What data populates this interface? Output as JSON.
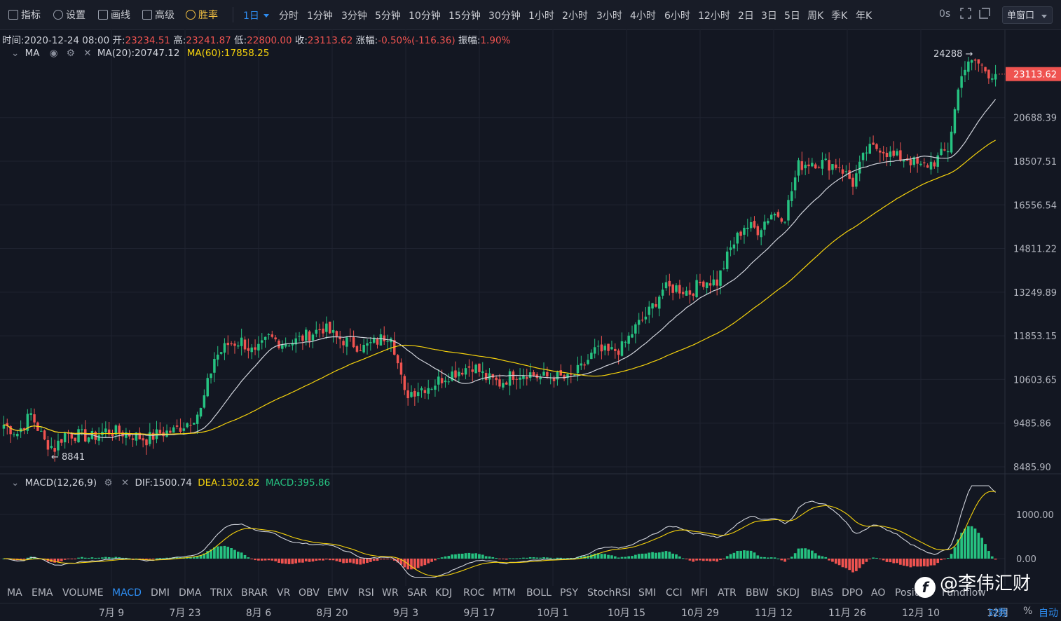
{
  "toolbar": {
    "items": [
      {
        "label": "指标",
        "icon": "indicator-icon"
      },
      {
        "label": "设置",
        "icon": "gear-icon"
      },
      {
        "label": "画线",
        "icon": "pencil-icon"
      },
      {
        "label": "高级",
        "icon": "advanced-icon"
      },
      {
        "label": "胜率",
        "icon": "winrate-icon"
      }
    ],
    "timeframes": [
      "1日",
      "分时",
      "1分钟",
      "3分钟",
      "5分钟",
      "10分钟",
      "15分钟",
      "30分钟",
      "1小时",
      "2小时",
      "3小时",
      "4小时",
      "6小时",
      "12小时",
      "2日",
      "3日",
      "5日",
      "周K",
      "季K",
      "年K"
    ],
    "active_timeframe": "1日",
    "countdown": "0s",
    "window_mode": "单窗口"
  },
  "info": {
    "time_label": "时间:",
    "time": "2020-12-24 08:00",
    "open_label": "开:",
    "open": "23234.51",
    "high_label": "高:",
    "high": "23241.87",
    "low_label": "低:",
    "low": "22800.00",
    "close_label": "收:",
    "close": "23113.62",
    "change_label": "涨幅:",
    "change": "-0.50%(-116.36)",
    "amp_label": "振幅:",
    "amplitude": "1.90%"
  },
  "ma_legend": {
    "name": "MA",
    "ma20": "MA(20):20747.12",
    "ma60": "MA(60):17858.25"
  },
  "macd_legend": {
    "name": "MACD(12,26,9)",
    "dif": "DIF:1500.74",
    "dea": "DEA:1302.82",
    "macd": "MACD:395.86"
  },
  "indicators": [
    "MA",
    "EMA",
    "VOLUME",
    "MACD",
    "DMI",
    "DMA",
    "TRIX",
    "BRAR",
    "VR",
    "OBV",
    "EMV",
    "RSI",
    "WR",
    "SAR",
    "KDJ",
    "ROC",
    "MTM",
    "BOLL",
    "PSY",
    "StochRSI",
    "SMI",
    "CCI",
    "MFI",
    "ATR",
    "BBW",
    "SKDJ",
    "BIAS",
    "DPO",
    "AO",
    "Positi...",
    "Fundflow"
  ],
  "active_indicator": "MACD",
  "dates": [
    "7月 9",
    "7月 23",
    "8月 6",
    "8月 20",
    "9月 3",
    "9月 17",
    "10月 1",
    "10月 15",
    "10月 29",
    "11月 12",
    "11月 26",
    "12月 10",
    "12月"
  ],
  "date_controls": {
    "log": "对数",
    "pct": "%",
    "auto": "自动"
  },
  "watermark": "@李伟汇财",
  "colors": {
    "up": "#26c281",
    "down": "#ef5350",
    "ma20": "#d1d4dc",
    "ma60": "#f5d20c",
    "accent": "#2d8cf0"
  },
  "chart_data": {
    "type": "candlestick",
    "symbol_interval": "1D",
    "price_axis": {
      "ticks": [
        24288,
        23113.62,
        20688.39,
        18507.51,
        16556.54,
        14811.22,
        13249.89,
        11853.15,
        10603.65,
        9485.86,
        8485.9
      ],
      "labels": [
        "",
        "23113.62",
        "20688.39",
        "18507.51",
        "16556.54",
        "14811.22",
        "13249.89",
        "11853.15",
        "10603.65",
        "9485.86",
        "8485.90"
      ],
      "scale": "log",
      "range": [
        8300,
        25500
      ]
    },
    "last_price": "23113.62",
    "high_marker": "24288 →",
    "low_marker": "← 8841",
    "macd_axis": {
      "ticks": [
        1000,
        0
      ],
      "labels": [
        "1000.00",
        "0.00"
      ],
      "range": [
        -450,
        1700
      ]
    },
    "anchors_close": [
      [
        0,
        9450
      ],
      [
        4,
        9250
      ],
      [
        8,
        9700
      ],
      [
        12,
        9050
      ],
      [
        15,
        8900
      ],
      [
        18,
        9250
      ],
      [
        22,
        9200
      ],
      [
        26,
        9150
      ],
      [
        30,
        9300
      ],
      [
        36,
        9250
      ],
      [
        42,
        9100
      ],
      [
        46,
        9250
      ],
      [
        50,
        9300
      ],
      [
        54,
        9500
      ],
      [
        58,
        9800
      ],
      [
        62,
        11200
      ],
      [
        66,
        11600
      ],
      [
        70,
        11700
      ],
      [
        74,
        11300
      ],
      [
        78,
        11800
      ],
      [
        82,
        11650
      ],
      [
        86,
        11700
      ],
      [
        90,
        11900
      ],
      [
        94,
        12100
      ],
      [
        98,
        11800
      ],
      [
        102,
        11650
      ],
      [
        106,
        11500
      ],
      [
        110,
        11700
      ],
      [
        114,
        11950
      ],
      [
        118,
        10200
      ],
      [
        122,
        10350
      ],
      [
        126,
        10450
      ],
      [
        130,
        10700
      ],
      [
        134,
        10850
      ],
      [
        138,
        11000
      ],
      [
        142,
        10650
      ],
      [
        146,
        10500
      ],
      [
        150,
        10750
      ],
      [
        154,
        10800
      ],
      [
        158,
        10650
      ],
      [
        162,
        10700
      ],
      [
        166,
        10600
      ],
      [
        170,
        10900
      ],
      [
        174,
        11400
      ],
      [
        178,
        11350
      ],
      [
        182,
        11500
      ],
      [
        186,
        12100
      ],
      [
        190,
        12600
      ],
      [
        194,
        13350
      ],
      [
        198,
        13400
      ],
      [
        202,
        13250
      ],
      [
        206,
        13650
      ],
      [
        210,
        13600
      ],
      [
        214,
        14800
      ],
      [
        218,
        15700
      ],
      [
        222,
        15550
      ],
      [
        226,
        16200
      ],
      [
        230,
        16100
      ],
      [
        234,
        18300
      ],
      [
        238,
        18500
      ],
      [
        242,
        18400
      ],
      [
        246,
        18300
      ],
      [
        250,
        17500
      ],
      [
        254,
        19000
      ],
      [
        258,
        19200
      ],
      [
        262,
        18700
      ],
      [
        266,
        18650
      ],
      [
        270,
        18200
      ],
      [
        274,
        18500
      ],
      [
        278,
        19100
      ],
      [
        282,
        23300
      ],
      [
        286,
        23900
      ],
      [
        290,
        23200
      ],
      [
        292,
        23113
      ]
    ],
    "ma_periods": [
      20,
      60
    ]
  }
}
